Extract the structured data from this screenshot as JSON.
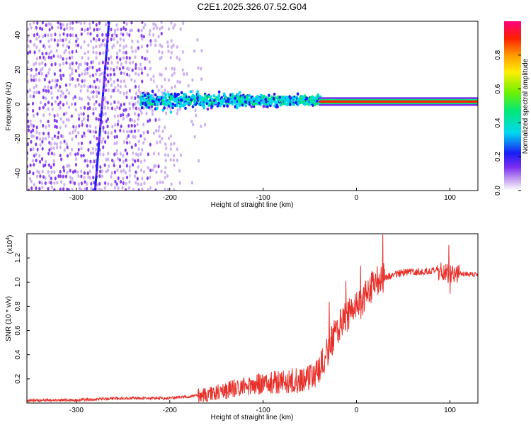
{
  "figure": {
    "title": "C2E1.2025.326.07.52.G04"
  },
  "chart_data": [
    {
      "type": "heatmap",
      "name": "spectrogram",
      "xlabel": "Height of straight line (km)",
      "ylabel": "Frequency (Hz)",
      "xlim": [
        -353,
        130
      ],
      "ylim": [
        -50,
        48
      ],
      "xticks": [
        -300,
        -200,
        -100,
        0,
        100
      ],
      "yticks": [
        -40,
        -20,
        0,
        20,
        40
      ],
      "colorbar": {
        "label": "Normalized spectral amplitude",
        "range": [
          0,
          1
        ],
        "ticks": [
          "0.0",
          "0.2",
          "0.4",
          "0.6",
          "0.8"
        ],
        "tick_values": [
          0.0,
          0.2,
          0.4,
          0.6,
          0.8
        ]
      },
      "features": [
        {
          "name": "noise-band",
          "x_range": [
            -353,
            -230
          ],
          "freq_range": [
            -50,
            48
          ],
          "amplitude": 0.15
        },
        {
          "name": "diagonal-streak",
          "from": [
            -280,
            -50
          ],
          "to": [
            -265,
            48
          ],
          "amplitude": 0.2
        },
        {
          "name": "signal-band",
          "x_range": [
            -230,
            -40
          ],
          "center_hz": 2,
          "amplitude": 0.4
        },
        {
          "name": "carrier-line",
          "x_range": [
            -40,
            130
          ],
          "center_hz": 1.5,
          "amplitude": 0.95
        }
      ]
    },
    {
      "type": "line",
      "name": "snr",
      "xlabel": "Height of straight line (km)",
      "ylabel": "SNR (10 * v/v)",
      "scale_label": "(x10",
      "scale_exponent": "4",
      "xlim": [
        -353,
        130
      ],
      "ylim": [
        0,
        1.4
      ],
      "xticks": [
        -300,
        -200,
        -100,
        0,
        100
      ],
      "yticks": [
        "0.2",
        "0.4",
        "0.6",
        "0.8",
        "1.0",
        "1.2"
      ],
      "ytick_values": [
        0.2,
        0.4,
        0.6,
        0.8,
        1.0,
        1.2
      ],
      "color": "#e8302a",
      "series": [
        {
          "name": "SNR",
          "x": [
            -353,
            -300,
            -250,
            -200,
            -160,
            -120,
            -90,
            -60,
            -40,
            -30,
            -20,
            -10,
            0,
            10,
            20,
            30,
            50,
            80,
            100,
            130
          ],
          "y": [
            0.02,
            0.025,
            0.04,
            0.04,
            0.07,
            0.14,
            0.17,
            0.19,
            0.25,
            0.45,
            0.62,
            0.72,
            0.78,
            0.9,
            0.98,
            1.04,
            1.08,
            1.09,
            1.08,
            1.06
          ]
        }
      ]
    }
  ]
}
